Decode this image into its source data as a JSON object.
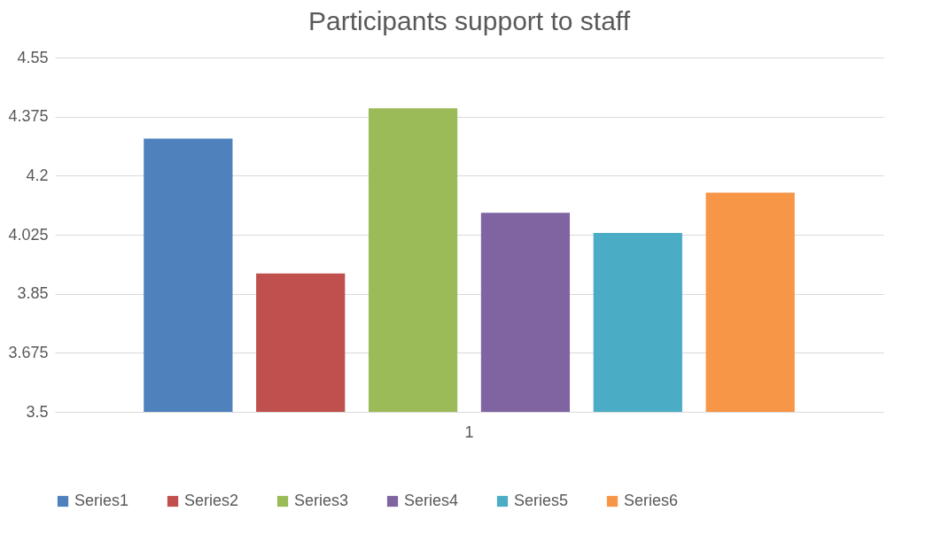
{
  "chart_data": {
    "type": "bar",
    "title": "Participants support to staff",
    "categories": [
      "1"
    ],
    "series": [
      {
        "name": "Series1",
        "color": "#4f81bd",
        "values": [
          4.31
        ]
      },
      {
        "name": "Series2",
        "color": "#c0504d",
        "values": [
          3.91
        ]
      },
      {
        "name": "Series3",
        "color": "#9bbb59",
        "values": [
          4.4
        ]
      },
      {
        "name": "Series4",
        "color": "#8064a2",
        "values": [
          4.09
        ]
      },
      {
        "name": "Series5",
        "color": "#4bacc6",
        "values": [
          4.03
        ]
      },
      {
        "name": "Series6",
        "color": "#f79646",
        "values": [
          4.15
        ]
      }
    ],
    "ylim": [
      3.5,
      4.55
    ],
    "yticks": [
      3.5,
      3.675,
      3.85,
      4.025,
      4.2,
      4.375,
      4.55
    ],
    "grid": "y",
    "legend": "bottom"
  }
}
